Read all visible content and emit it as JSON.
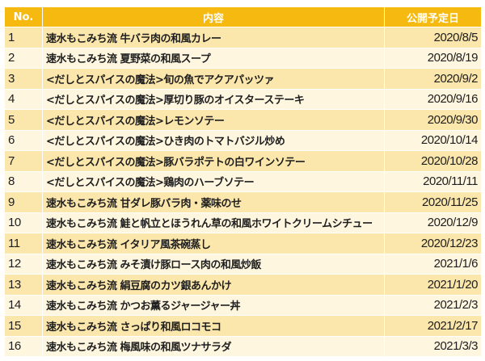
{
  "colors": {
    "header_bg": "#f5b90f",
    "header_text": "#ffffff",
    "row_odd": "#fbe6ab",
    "row_even": "#fef6df"
  },
  "table": {
    "headers": [
      "No.",
      "内容",
      "公開予定日"
    ],
    "rows": [
      [
        "1",
        "速水もこみち流 牛バラ肉の和風カレー",
        "2020/8/5"
      ],
      [
        "2",
        "速水もこみち流 夏野菜の和風スープ",
        "2020/8/19"
      ],
      [
        "3",
        "<だしとスパイスの魔法>旬の魚でアクアパッツァ",
        "2020/9/2"
      ],
      [
        "4",
        "<だしとスパイスの魔法>厚切り豚のオイスターステーキ",
        "2020/9/16"
      ],
      [
        "5",
        "<だしとスパイスの魔法>レモンソテー",
        "2020/9/30"
      ],
      [
        "6",
        "<だしとスパイスの魔法>ひき肉のトマトバジル炒め",
        "2020/10/14"
      ],
      [
        "7",
        "<だしとスパイスの魔法>豚バラポテトの白ワインソテー",
        "2020/10/28"
      ],
      [
        "8",
        "<だしとスパイスの魔法>鶏肉のハーブソテー",
        "2020/11/11"
      ],
      [
        "9",
        "速水もこみち流 甘ダレ豚バラ肉・薬味のせ",
        "2020/11/25"
      ],
      [
        "10",
        "速水もこみち流 鮭と帆立とほうれん草の和風ホワイトクリームシチュー",
        "2020/12/9"
      ],
      [
        "11",
        "速水もこみち流 イタリア風茶碗蒸し",
        "2020/12/23"
      ],
      [
        "12",
        "速水もこみち流 みそ漬け豚ロース肉の和風炒飯",
        "2021/1/6"
      ],
      [
        "13",
        "速水もこみち流 絹豆腐のカツ銀あんかけ",
        "2021/1/20"
      ],
      [
        "14",
        "速水もこみち流 かつお薫るジャージャー丼",
        "2021/2/3"
      ],
      [
        "15",
        "速水もこみち流 さっぱり和風ロコモコ",
        "2021/2/17"
      ],
      [
        "16",
        "速水もこみち流 梅風味の和風ツナサラダ",
        "2021/3/3"
      ]
    ]
  }
}
